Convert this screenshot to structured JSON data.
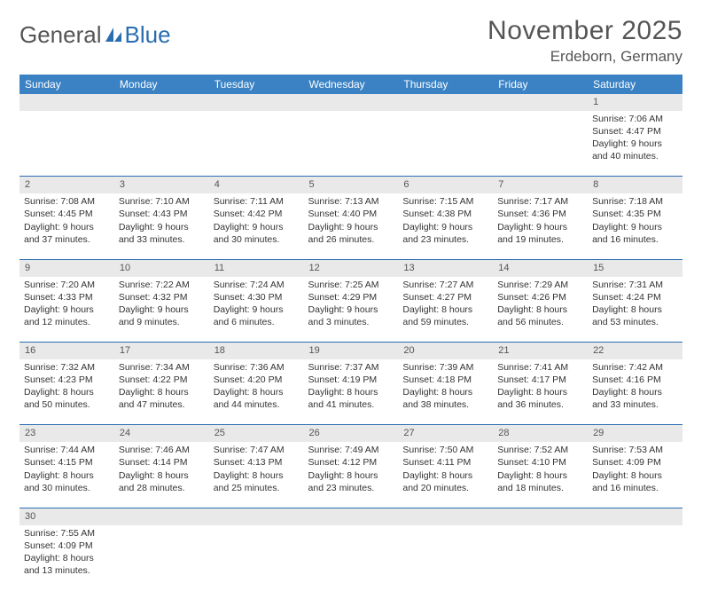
{
  "logo": {
    "text1": "General",
    "text2": "Blue",
    "sail_color": "#2a6db0"
  },
  "title": "November 2025",
  "location": "Erdeborn, Germany",
  "colors": {
    "header_bg": "#3a82c4",
    "header_text": "#ffffff",
    "rule": "#2a6db0",
    "daynum_bg": "#e9e9e9"
  },
  "day_labels": [
    "Sunday",
    "Monday",
    "Tuesday",
    "Wednesday",
    "Thursday",
    "Friday",
    "Saturday"
  ],
  "weeks": [
    [
      null,
      null,
      null,
      null,
      null,
      null,
      {
        "n": "1",
        "sr": "Sunrise: 7:06 AM",
        "ss": "Sunset: 4:47 PM",
        "dl": "Daylight: 9 hours and 40 minutes."
      }
    ],
    [
      {
        "n": "2",
        "sr": "Sunrise: 7:08 AM",
        "ss": "Sunset: 4:45 PM",
        "dl": "Daylight: 9 hours and 37 minutes."
      },
      {
        "n": "3",
        "sr": "Sunrise: 7:10 AM",
        "ss": "Sunset: 4:43 PM",
        "dl": "Daylight: 9 hours and 33 minutes."
      },
      {
        "n": "4",
        "sr": "Sunrise: 7:11 AM",
        "ss": "Sunset: 4:42 PM",
        "dl": "Daylight: 9 hours and 30 minutes."
      },
      {
        "n": "5",
        "sr": "Sunrise: 7:13 AM",
        "ss": "Sunset: 4:40 PM",
        "dl": "Daylight: 9 hours and 26 minutes."
      },
      {
        "n": "6",
        "sr": "Sunrise: 7:15 AM",
        "ss": "Sunset: 4:38 PM",
        "dl": "Daylight: 9 hours and 23 minutes."
      },
      {
        "n": "7",
        "sr": "Sunrise: 7:17 AM",
        "ss": "Sunset: 4:36 PM",
        "dl": "Daylight: 9 hours and 19 minutes."
      },
      {
        "n": "8",
        "sr": "Sunrise: 7:18 AM",
        "ss": "Sunset: 4:35 PM",
        "dl": "Daylight: 9 hours and 16 minutes."
      }
    ],
    [
      {
        "n": "9",
        "sr": "Sunrise: 7:20 AM",
        "ss": "Sunset: 4:33 PM",
        "dl": "Daylight: 9 hours and 12 minutes."
      },
      {
        "n": "10",
        "sr": "Sunrise: 7:22 AM",
        "ss": "Sunset: 4:32 PM",
        "dl": "Daylight: 9 hours and 9 minutes."
      },
      {
        "n": "11",
        "sr": "Sunrise: 7:24 AM",
        "ss": "Sunset: 4:30 PM",
        "dl": "Daylight: 9 hours and 6 minutes."
      },
      {
        "n": "12",
        "sr": "Sunrise: 7:25 AM",
        "ss": "Sunset: 4:29 PM",
        "dl": "Daylight: 9 hours and 3 minutes."
      },
      {
        "n": "13",
        "sr": "Sunrise: 7:27 AM",
        "ss": "Sunset: 4:27 PM",
        "dl": "Daylight: 8 hours and 59 minutes."
      },
      {
        "n": "14",
        "sr": "Sunrise: 7:29 AM",
        "ss": "Sunset: 4:26 PM",
        "dl": "Daylight: 8 hours and 56 minutes."
      },
      {
        "n": "15",
        "sr": "Sunrise: 7:31 AM",
        "ss": "Sunset: 4:24 PM",
        "dl": "Daylight: 8 hours and 53 minutes."
      }
    ],
    [
      {
        "n": "16",
        "sr": "Sunrise: 7:32 AM",
        "ss": "Sunset: 4:23 PM",
        "dl": "Daylight: 8 hours and 50 minutes."
      },
      {
        "n": "17",
        "sr": "Sunrise: 7:34 AM",
        "ss": "Sunset: 4:22 PM",
        "dl": "Daylight: 8 hours and 47 minutes."
      },
      {
        "n": "18",
        "sr": "Sunrise: 7:36 AM",
        "ss": "Sunset: 4:20 PM",
        "dl": "Daylight: 8 hours and 44 minutes."
      },
      {
        "n": "19",
        "sr": "Sunrise: 7:37 AM",
        "ss": "Sunset: 4:19 PM",
        "dl": "Daylight: 8 hours and 41 minutes."
      },
      {
        "n": "20",
        "sr": "Sunrise: 7:39 AM",
        "ss": "Sunset: 4:18 PM",
        "dl": "Daylight: 8 hours and 38 minutes."
      },
      {
        "n": "21",
        "sr": "Sunrise: 7:41 AM",
        "ss": "Sunset: 4:17 PM",
        "dl": "Daylight: 8 hours and 36 minutes."
      },
      {
        "n": "22",
        "sr": "Sunrise: 7:42 AM",
        "ss": "Sunset: 4:16 PM",
        "dl": "Daylight: 8 hours and 33 minutes."
      }
    ],
    [
      {
        "n": "23",
        "sr": "Sunrise: 7:44 AM",
        "ss": "Sunset: 4:15 PM",
        "dl": "Daylight: 8 hours and 30 minutes."
      },
      {
        "n": "24",
        "sr": "Sunrise: 7:46 AM",
        "ss": "Sunset: 4:14 PM",
        "dl": "Daylight: 8 hours and 28 minutes."
      },
      {
        "n": "25",
        "sr": "Sunrise: 7:47 AM",
        "ss": "Sunset: 4:13 PM",
        "dl": "Daylight: 8 hours and 25 minutes."
      },
      {
        "n": "26",
        "sr": "Sunrise: 7:49 AM",
        "ss": "Sunset: 4:12 PM",
        "dl": "Daylight: 8 hours and 23 minutes."
      },
      {
        "n": "27",
        "sr": "Sunrise: 7:50 AM",
        "ss": "Sunset: 4:11 PM",
        "dl": "Daylight: 8 hours and 20 minutes."
      },
      {
        "n": "28",
        "sr": "Sunrise: 7:52 AM",
        "ss": "Sunset: 4:10 PM",
        "dl": "Daylight: 8 hours and 18 minutes."
      },
      {
        "n": "29",
        "sr": "Sunrise: 7:53 AM",
        "ss": "Sunset: 4:09 PM",
        "dl": "Daylight: 8 hours and 16 minutes."
      }
    ],
    [
      {
        "n": "30",
        "sr": "Sunrise: 7:55 AM",
        "ss": "Sunset: 4:09 PM",
        "dl": "Daylight: 8 hours and 13 minutes."
      },
      null,
      null,
      null,
      null,
      null,
      null
    ]
  ]
}
